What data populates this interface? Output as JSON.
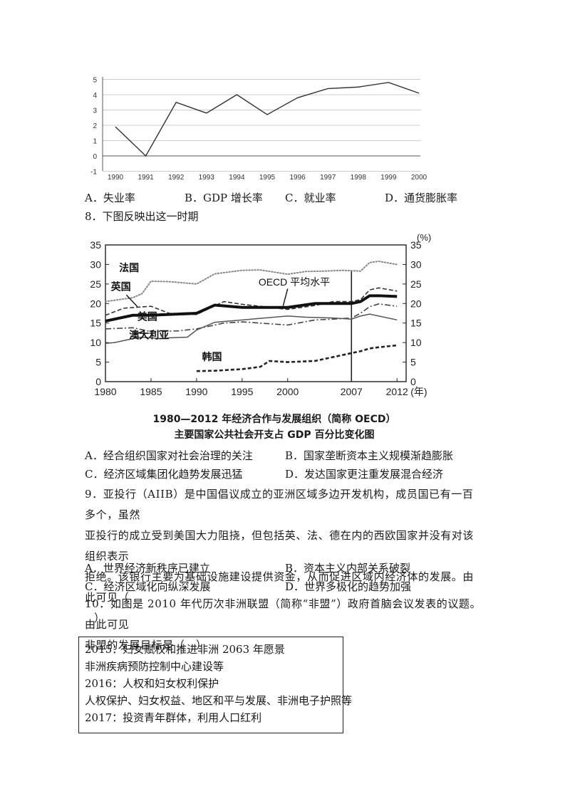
{
  "chart1": {
    "type": "line",
    "x": [
      "1990",
      "1991",
      "1992",
      "1993",
      "1994",
      "1995",
      "1996",
      "1997",
      "1998",
      "1999",
      "2000"
    ],
    "values": [
      1.9,
      0,
      3.5,
      2.8,
      4.0,
      2.7,
      3.8,
      4.4,
      4.5,
      4.8,
      4.1
    ],
    "yticks": [
      "5",
      "4",
      "3",
      "2",
      "1",
      "0",
      "-1"
    ],
    "ylim": [
      -1,
      5
    ]
  },
  "q7_options": [
    "A．失业率",
    "B．GDP 增长率",
    "C．就业率",
    "D．通货膨胀率"
  ],
  "q8": {
    "stem": "8．下图反映出这一时期",
    "options": [
      "A．经合组织国家对社会治理的关注",
      "B．国家垄断资本主义规模渐趋膨胀",
      "C．经济区域集团化趋势发展迅猛",
      "D．发达国家更注重发展混合经济"
    ]
  },
  "chart_data": {
    "type": "line",
    "title_line1": "1980—2012 年经济合作与发展组织（简称 OECD）",
    "title_line2": "主要国家公共社会开支占 GDP 百分比变化图",
    "unit_label": "(%)",
    "x_unit": "(年)",
    "xticks": [
      "1980",
      "1985",
      "1990",
      "1995",
      "2000",
      "2007",
      "2012"
    ],
    "yticks": [
      "35",
      "30",
      "25",
      "20",
      "15",
      "10",
      "5",
      "0"
    ],
    "ylim": [
      0,
      35
    ],
    "xlim": [
      1980,
      2013
    ],
    "marker_year": 2007,
    "series": [
      {
        "name": "法国",
        "style": "dotted",
        "x": [
          1980,
          1983,
          1984,
          1985,
          1987,
          1990,
          1992,
          1995,
          1997,
          2000,
          2002,
          2004,
          2006,
          2007,
          2008,
          2009,
          2010,
          2012
        ],
        "values": [
          20.5,
          21.5,
          22.5,
          25.7,
          25.6,
          25.0,
          27.6,
          28.5,
          28.6,
          27.5,
          28.2,
          28.3,
          28.5,
          28.4,
          28.3,
          30.5,
          30.8,
          30.0
        ]
      },
      {
        "name": "英国",
        "style": "dashed",
        "x": [
          1980,
          1982,
          1985,
          1987,
          1990,
          1993,
          1995,
          2000,
          2003,
          2005,
          2007,
          2008,
          2009,
          2010,
          2012
        ],
        "values": [
          17.0,
          18.8,
          19.3,
          17.5,
          17.2,
          20.5,
          19.8,
          18.5,
          19.5,
          20.5,
          20.5,
          21.0,
          23.5,
          24.0,
          23.2
        ]
      },
      {
        "name": "OECD 平均水平",
        "style": "thick",
        "x": [
          1980,
          1983,
          1985,
          1987,
          1990,
          1992,
          1995,
          2000,
          2003,
          2005,
          2007,
          2008,
          2009,
          2010,
          2012
        ],
        "values": [
          15.5,
          17.0,
          17.0,
          17.2,
          17.5,
          19.6,
          19.0,
          19.0,
          20.0,
          20.0,
          20.0,
          20.5,
          22.0,
          22.0,
          21.8
        ]
      },
      {
        "name": "美国",
        "style": "dashdot",
        "x": [
          1980,
          1983,
          1985,
          1988,
          1990,
          1993,
          1995,
          2000,
          2003,
          2005,
          2007,
          2008,
          2009,
          2010,
          2012
        ],
        "values": [
          13.5,
          13.8,
          12.8,
          13.0,
          13.5,
          15.0,
          15.3,
          14.5,
          15.8,
          16.0,
          16.3,
          17.5,
          19.2,
          19.9,
          19.3
        ]
      },
      {
        "name": "澳大利亚",
        "style": "solid",
        "x": [
          1980,
          1981,
          1983,
          1984,
          1986,
          1987,
          1989,
          1990,
          1992,
          1995,
          1997,
          2000,
          2002,
          2005,
          2007,
          2008,
          2009,
          2012
        ],
        "values": [
          9.8,
          10.0,
          11.0,
          11.4,
          11.0,
          11.2,
          11.4,
          13.2,
          15.2,
          15.8,
          16.2,
          16.8,
          16.5,
          16.3,
          16.0,
          16.8,
          17.3,
          15.8
        ]
      },
      {
        "name": "韩国",
        "style": "dashed-bold",
        "x": [
          1990,
          1992,
          1995,
          1997,
          1998,
          2000,
          2003,
          2005,
          2007,
          2008,
          2009,
          2010,
          2012
        ],
        "values": [
          2.7,
          2.8,
          3.2,
          3.8,
          5.3,
          5.0,
          5.3,
          6.3,
          7.3,
          7.8,
          8.5,
          8.8,
          9.3
        ]
      }
    ]
  },
  "q9": {
    "line1": "9．亚投行（AIIB）是中国倡议成立的亚洲区域多边开发机构，成员国已有一百多个，虽然",
    "line2": "亚投行的成立受到美国大力阻挠，但包括英、法、德在内的西欧国家并没有对该组织表示",
    "line3": "拒绝。该银行主要为基础设施建设提供资金，从而促进区域内经济体的发展。由此可见（",
    "line4": "）",
    "options": [
      "A．世界经济新秩序已建立",
      "B．资本主义内部关系破裂",
      "C．经济区域化向纵深发展",
      "D．世界多极化的趋势加强"
    ]
  },
  "q10": {
    "line1": "10．如图是 2010 年代历次非洲联盟（简称“非盟”）政府首脑会议发表的议题。由此可见",
    "line2": "非盟的发展目标是（　）",
    "box_lines": [
      "2015：妇女赋权和推进非洲 2063 年愿景",
      "非洲疾病预防控制中心建设等",
      "2016：人权和妇女权利保护",
      "人权保护、妇女权益、地区和平与发展、非洲电子护照等",
      "2017：投资青年群体，利用人口红利"
    ]
  }
}
